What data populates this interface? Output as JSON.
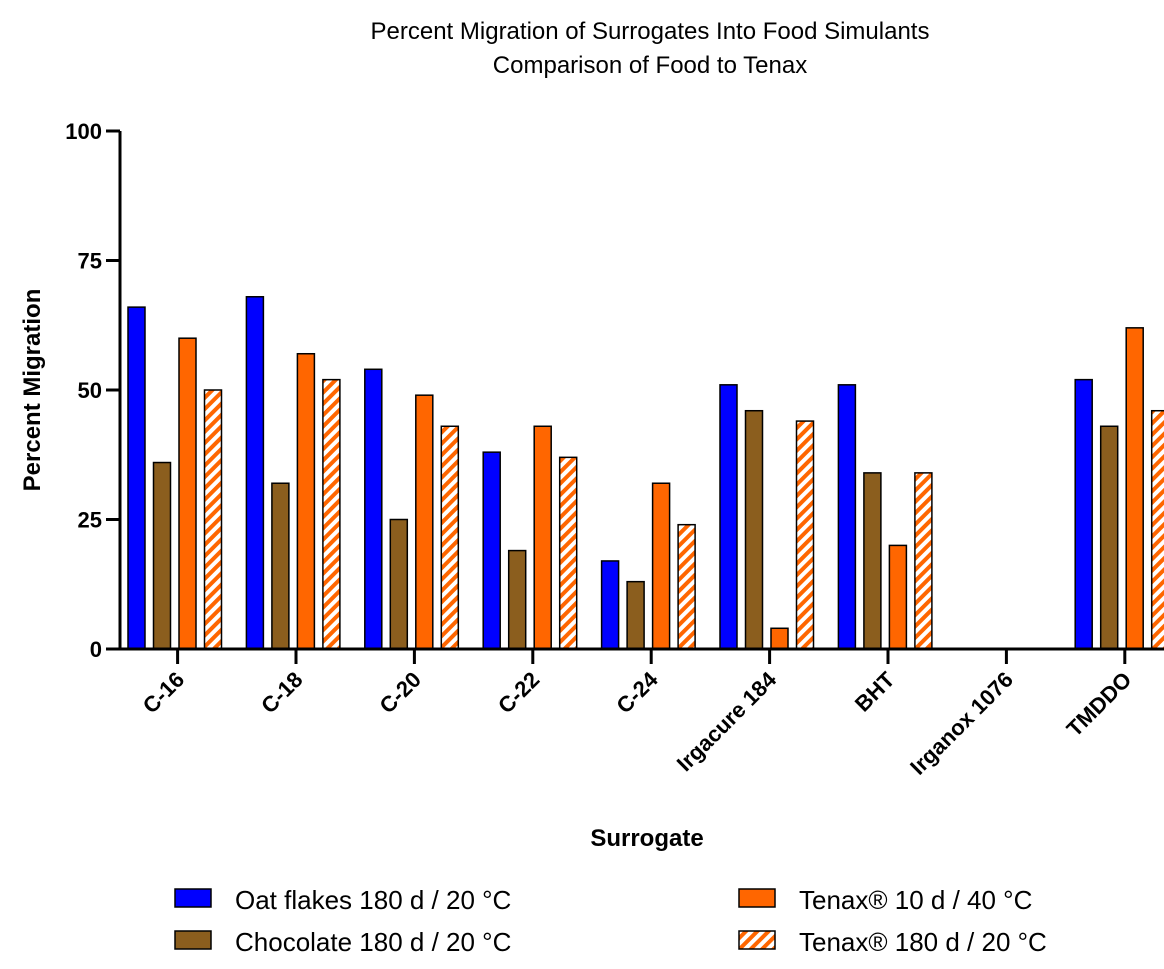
{
  "chart_data": {
    "type": "bar",
    "title": "Percent Migration of Surrogates Into Food Simulants",
    "subtitle": "Comparison of Food to Tenax",
    "xlabel": "Surrogate",
    "ylabel": "Percent Migration",
    "ylim": [
      0,
      100
    ],
    "yticks": [
      "0",
      "25",
      "50",
      "75",
      "100"
    ],
    "grid": false,
    "legend_position": "bottom",
    "categories": [
      "C-16",
      "C-18",
      "C-20",
      "C-22",
      "C-24",
      "Irgacure 184",
      "BHT",
      "Irganox 1076",
      "TMDDO"
    ],
    "series": [
      {
        "name": "Oat flakes 180 d / 20 °C",
        "color": "#0000ff",
        "pattern": "solid",
        "values": [
          66,
          68,
          54,
          38,
          17,
          51,
          51,
          0,
          52
        ]
      },
      {
        "name": "Chocolate 180 d / 20 °C",
        "color": "#8b5e1e",
        "pattern": "solid",
        "values": [
          36,
          32,
          25,
          19,
          13,
          46,
          34,
          0,
          43
        ]
      },
      {
        "name": "Tenax® 10 d / 40 °C",
        "color": "#ff6600",
        "pattern": "solid",
        "values": [
          60,
          57,
          49,
          43,
          32,
          4,
          20,
          0,
          62
        ]
      },
      {
        "name": "Tenax® 180 d / 20 °C",
        "color": "#ff6600",
        "pattern": "hatched",
        "values": [
          50,
          52,
          43,
          37,
          24,
          44,
          34,
          0,
          46
        ]
      }
    ]
  }
}
